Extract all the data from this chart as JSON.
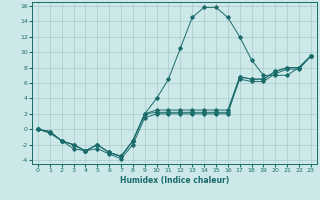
{
  "xlabel": "Humidex (Indice chaleur)",
  "bg_color": "#cce8e8",
  "grid_color": "#aacccc",
  "line_color": "#1a6b6b",
  "xlim": [
    -0.5,
    23.5
  ],
  "ylim": [
    -4.5,
    16.5
  ],
  "xticks": [
    0,
    1,
    2,
    3,
    4,
    5,
    6,
    7,
    8,
    9,
    10,
    11,
    12,
    13,
    14,
    15,
    16,
    17,
    18,
    19,
    20,
    21,
    22,
    23
  ],
  "yticks": [
    -4,
    -2,
    0,
    2,
    4,
    6,
    8,
    10,
    12,
    14,
    16
  ],
  "lines": [
    {
      "x": [
        0,
        1,
        2,
        3,
        4,
        5,
        6,
        7,
        8,
        9,
        10,
        11,
        12,
        13,
        14,
        15,
        16,
        17,
        18,
        19,
        20,
        21,
        22,
        23
      ],
      "y": [
        0,
        -0.5,
        -1.5,
        -2.5,
        -2.8,
        -2.5,
        -3.2,
        -3.8,
        -2.0,
        1.5,
        2.0,
        2.0,
        2.0,
        2.0,
        2.0,
        2.0,
        2.0,
        6.8,
        6.5,
        6.5,
        7.5,
        8.0,
        8.0,
        9.5
      ]
    },
    {
      "x": [
        0,
        1,
        2,
        3,
        4,
        5,
        6,
        7,
        8,
        9,
        10,
        11,
        12,
        13,
        14,
        15,
        16,
        17,
        18,
        19,
        20,
        21,
        22,
        23
      ],
      "y": [
        0,
        -0.3,
        -1.5,
        -2.0,
        -2.8,
        -2.0,
        -3.0,
        -3.5,
        -1.5,
        2.0,
        4.0,
        6.5,
        10.5,
        14.5,
        15.8,
        15.8,
        14.5,
        12.0,
        9.0,
        7.0,
        7.0,
        7.0,
        8.0,
        9.5
      ]
    },
    {
      "x": [
        0,
        1,
        2,
        3,
        4,
        5,
        6,
        7,
        8,
        9,
        10,
        11,
        12,
        13,
        14,
        15,
        16,
        17,
        18,
        19,
        20,
        21,
        22,
        23
      ],
      "y": [
        0,
        -0.3,
        -1.5,
        -2.0,
        -2.8,
        -2.0,
        -3.0,
        -3.5,
        -1.5,
        2.0,
        2.5,
        2.5,
        2.5,
        2.5,
        2.5,
        2.5,
        2.5,
        6.8,
        6.5,
        6.5,
        7.5,
        8.0,
        8.0,
        9.5
      ]
    },
    {
      "x": [
        0,
        1,
        2,
        3,
        4,
        5,
        6,
        7,
        8,
        9,
        10,
        11,
        12,
        13,
        14,
        15,
        16,
        17,
        18,
        19,
        20,
        21,
        22,
        23
      ],
      "y": [
        0,
        -0.3,
        -1.5,
        -2.0,
        -2.8,
        -2.0,
        -3.0,
        -3.5,
        -1.5,
        2.0,
        2.2,
        2.2,
        2.2,
        2.2,
        2.2,
        2.2,
        2.2,
        6.5,
        6.2,
        6.2,
        7.2,
        7.8,
        7.8,
        9.5
      ]
    }
  ]
}
